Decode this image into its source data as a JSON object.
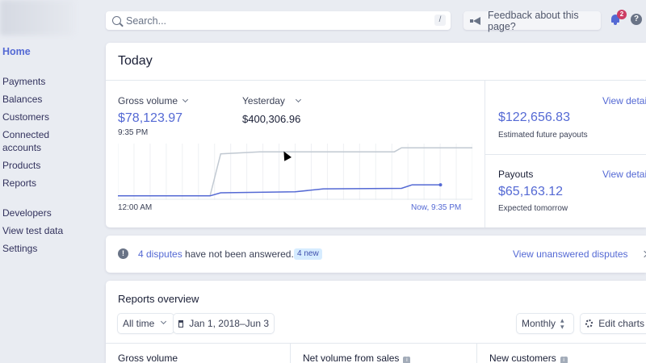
{
  "sidebar": {
    "items": [
      {
        "label": "Home"
      },
      {
        "label": "Payments"
      },
      {
        "label": "Balances"
      },
      {
        "label": "Customers"
      },
      {
        "label": "Connected"
      },
      {
        "label": "accounts"
      },
      {
        "label": "Products"
      },
      {
        "label": "Reports"
      },
      {
        "label": "Developers"
      },
      {
        "label": "View test data"
      },
      {
        "label": "Settings"
      }
    ]
  },
  "topbar": {
    "search_placeholder": "Search...",
    "search_shortcut": "/",
    "feedback_label": "Feedback about this page?",
    "notifications_count": "2",
    "help_label": "?"
  },
  "today": {
    "title": "Today",
    "gross_volume_label": "Gross volume",
    "gross_volume_value": "$78,123.97",
    "gross_volume_time": "9:35 PM",
    "compare_label": "Yesterday",
    "compare_value": "$400,306.96",
    "x_start_label": "12:00 AM",
    "x_end_label": "Now, 9:35 PM",
    "future_payouts_value": "$122,656.83",
    "future_payouts_caption": "Estimated future payouts",
    "future_payouts_link": "View details",
    "payouts_label": "Payouts",
    "payouts_link": "View details",
    "payouts_value": "$65,163.12",
    "payouts_caption": "Expected tomorrow"
  },
  "chart_data": {
    "type": "line",
    "title": "",
    "xlabel": "",
    "ylabel": "",
    "x_tick_labels": [
      "12:00 AM",
      "Now, 9:35 PM"
    ],
    "grid": true,
    "series": [
      {
        "name": "Yesterday",
        "color": "#c1c9d2",
        "points": [
          [
            0,
            0.02
          ],
          [
            0.26,
            0.02
          ],
          [
            0.29,
            0.86
          ],
          [
            0.4,
            0.9
          ],
          [
            0.6,
            0.9
          ],
          [
            0.78,
            0.9
          ],
          [
            0.8,
            0.98
          ],
          [
            1,
            0.98
          ]
        ]
      },
      {
        "name": "Gross volume",
        "color": "#5469d4",
        "points": [
          [
            0,
            0.02
          ],
          [
            0.26,
            0.02
          ],
          [
            0.29,
            0.08
          ],
          [
            0.5,
            0.1
          ],
          [
            0.58,
            0.16
          ],
          [
            0.8,
            0.17
          ],
          [
            0.83,
            0.24
          ],
          [
            0.91,
            0.24
          ]
        ]
      }
    ]
  },
  "disputes": {
    "count_link": "4 disputes",
    "message": " have not been answered.",
    "badge": "4 new",
    "view_link": "View unanswered disputes"
  },
  "reports": {
    "title": "Reports overview",
    "range_select": "All time",
    "date_range": "Jan 1, 2018–Jun 3",
    "interval_select": "Monthly",
    "edit_button": "Edit charts",
    "columns": [
      "Gross volume",
      "Net volume from sales",
      "New customers"
    ]
  },
  "colors": {
    "accent": "#5469d4",
    "background": "#e9ecf2",
    "badge": "#cd3d64"
  }
}
